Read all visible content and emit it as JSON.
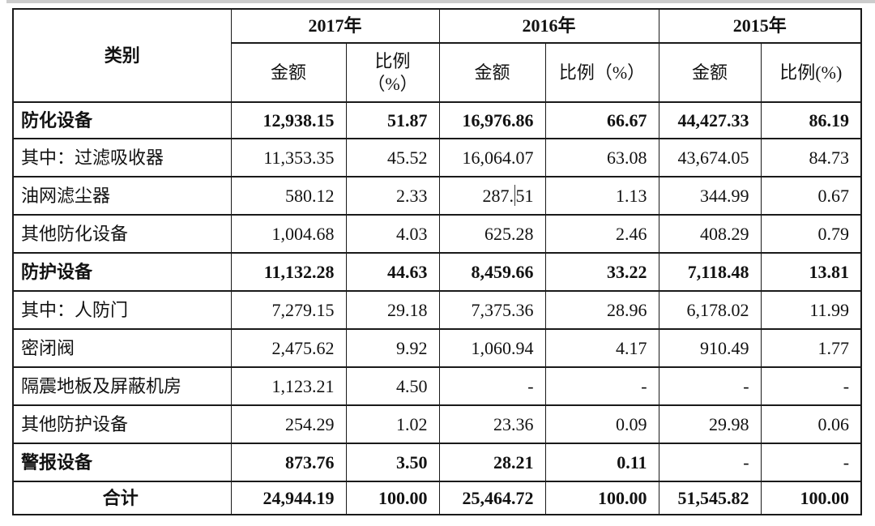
{
  "page": {
    "background_color": "#ffffff",
    "top_strip_color": "#cccccc"
  },
  "table": {
    "border_color": "#1a1a1a",
    "header": {
      "category_label": "类别",
      "year_groups": [
        {
          "year": "2017年",
          "amount_label": "金额",
          "ratio_label_line1": "比例",
          "ratio_label_line2": "（%）"
        },
        {
          "year": "2016年",
          "amount_label": "金额",
          "ratio_label": "比例（%）"
        },
        {
          "year": "2015年",
          "amount_label": "金额",
          "ratio_label": "比例(%)"
        }
      ]
    },
    "rows": [
      {
        "cells": [
          "防化设备",
          "12,938.15",
          "51.87",
          "16,976.86",
          "66.67",
          "44,427.33",
          "86.19"
        ],
        "bold": true
      },
      {
        "cells": [
          "其中：过滤吸收器",
          "11,353.35",
          "45.52",
          "16,064.07",
          "63.08",
          "43,674.05",
          "84.73"
        ],
        "bold": false
      },
      {
        "cells": [
          "油网滤尘器",
          "580.12",
          "2.33",
          "287.51",
          "1.13",
          "344.99",
          "0.67"
        ],
        "bold": false
      },
      {
        "cells": [
          "其他防化设备",
          "1,004.68",
          "4.03",
          "625.28",
          "2.46",
          "408.29",
          "0.79"
        ],
        "bold": false
      },
      {
        "cells": [
          "防护设备",
          "11,132.28",
          "44.63",
          "8,459.66",
          "33.22",
          "7,118.48",
          "13.81"
        ],
        "bold": true
      },
      {
        "cells": [
          "其中：人防门",
          "7,279.15",
          "29.18",
          "7,375.36",
          "28.96",
          "6,178.02",
          "11.99"
        ],
        "bold": false
      },
      {
        "cells": [
          "密闭阀",
          "2,475.62",
          "9.92",
          "1,060.94",
          "4.17",
          "910.49",
          "1.77"
        ],
        "bold": false
      },
      {
        "cells": [
          "隔震地板及屏蔽机房",
          "1,123.21",
          "4.50",
          "-",
          "-",
          "-",
          "-"
        ],
        "bold": false
      },
      {
        "cells": [
          "其他防护设备",
          "254.29",
          "1.02",
          "23.36",
          "0.09",
          "29.98",
          "0.06"
        ],
        "bold": false
      },
      {
        "cells": [
          "警报设备",
          "873.76",
          "3.50",
          "28.21",
          "0.11",
          "-",
          "-"
        ],
        "bold": true,
        "regular_cells": [
          5,
          6
        ]
      },
      {
        "cells": [
          "合计",
          "24,944.19",
          "100.00",
          "25,464.72",
          "100.00",
          "51,545.82",
          "100.00"
        ],
        "bold": true,
        "label_align": "center",
        "is_total": true
      }
    ],
    "caret": {
      "row_index": 2,
      "cell_index": 3,
      "before": "287.",
      "after": "51"
    }
  }
}
